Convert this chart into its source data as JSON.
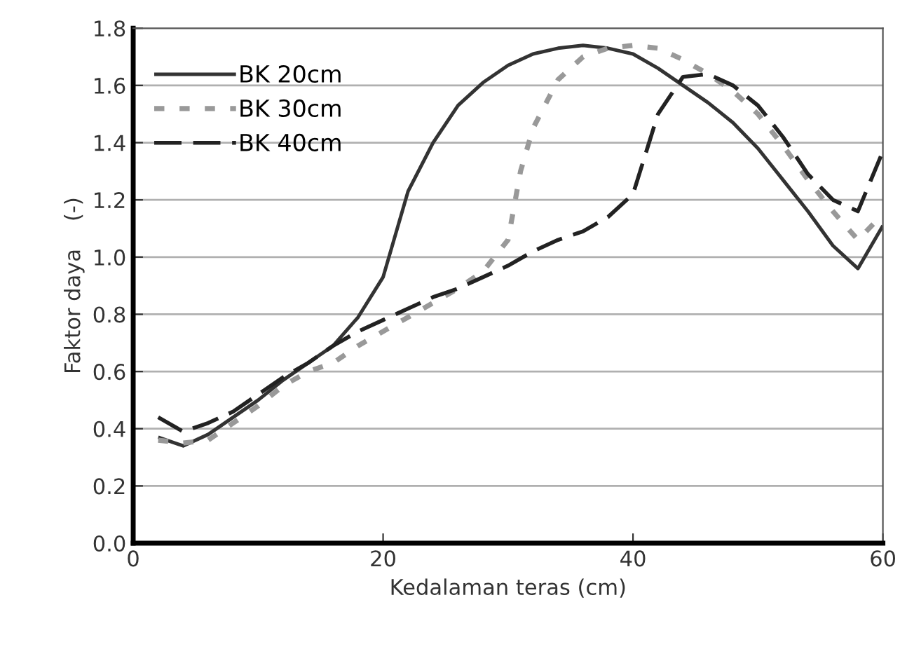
{
  "chart_data": {
    "type": "line",
    "xlabel": "Kedalaman teras (cm)",
    "ylabel": "Faktor daya    (-)",
    "xlim": [
      0,
      60
    ],
    "xticks": [
      0,
      20,
      40,
      60
    ],
    "ylim": [
      0,
      1.8
    ],
    "yticks": [
      {
        "value": 0,
        "label": "0.0"
      },
      0.2,
      0.4,
      0.6,
      0.8,
      {
        "value": 1,
        "label": "1.0"
      },
      1.2,
      1.4,
      1.6,
      1.8
    ],
    "grid": "y",
    "legend": "top left",
    "series": [
      {
        "name": "BK 20cm",
        "color": "#333333",
        "line_style": "solid",
        "x": [
          2,
          4,
          6,
          8,
          10,
          12,
          14,
          16,
          18,
          20,
          22,
          24,
          26,
          28,
          30,
          32,
          34,
          36,
          38,
          40,
          42,
          44,
          46,
          48,
          50,
          52,
          54,
          56,
          58,
          60
        ],
        "values": [
          0.37,
          0.34,
          0.38,
          0.44,
          0.5,
          0.57,
          0.63,
          0.69,
          0.79,
          0.93,
          1.23,
          1.4,
          1.53,
          1.61,
          1.67,
          1.71,
          1.73,
          1.74,
          1.73,
          1.71,
          1.66,
          1.6,
          1.54,
          1.47,
          1.38,
          1.27,
          1.16,
          1.04,
          0.96,
          1.11
        ]
      },
      {
        "name": "BK 30cm",
        "color": "#999999",
        "line_style": "dotted",
        "x": [
          2,
          4,
          6,
          8,
          10,
          12,
          14,
          16,
          18,
          20,
          22,
          24,
          26,
          28,
          30,
          31,
          32,
          34,
          36,
          38,
          40,
          42,
          44,
          46,
          48,
          50,
          52,
          54,
          56,
          58,
          60
        ],
        "values": [
          0.36,
          0.35,
          0.36,
          0.42,
          0.48,
          0.55,
          0.6,
          0.63,
          0.69,
          0.74,
          0.79,
          0.84,
          0.89,
          0.95,
          1.06,
          1.3,
          1.45,
          1.62,
          1.7,
          1.73,
          1.74,
          1.73,
          1.69,
          1.64,
          1.58,
          1.5,
          1.39,
          1.27,
          1.16,
          1.06,
          1.15
        ]
      },
      {
        "name": "BK 40cm",
        "color": "#222222",
        "line_style": "dashed",
        "x": [
          2,
          4,
          6,
          8,
          10,
          12,
          14,
          16,
          18,
          20,
          22,
          24,
          26,
          28,
          30,
          32,
          34,
          36,
          38,
          40,
          42,
          44,
          46,
          48,
          50,
          52,
          54,
          56,
          58,
          60
        ],
        "values": [
          0.44,
          0.39,
          0.42,
          0.46,
          0.52,
          0.58,
          0.63,
          0.69,
          0.74,
          0.78,
          0.82,
          0.86,
          0.89,
          0.93,
          0.97,
          1.02,
          1.06,
          1.09,
          1.14,
          1.22,
          1.5,
          1.63,
          1.64,
          1.6,
          1.53,
          1.42,
          1.29,
          1.2,
          1.16,
          1.37
        ]
      }
    ]
  }
}
